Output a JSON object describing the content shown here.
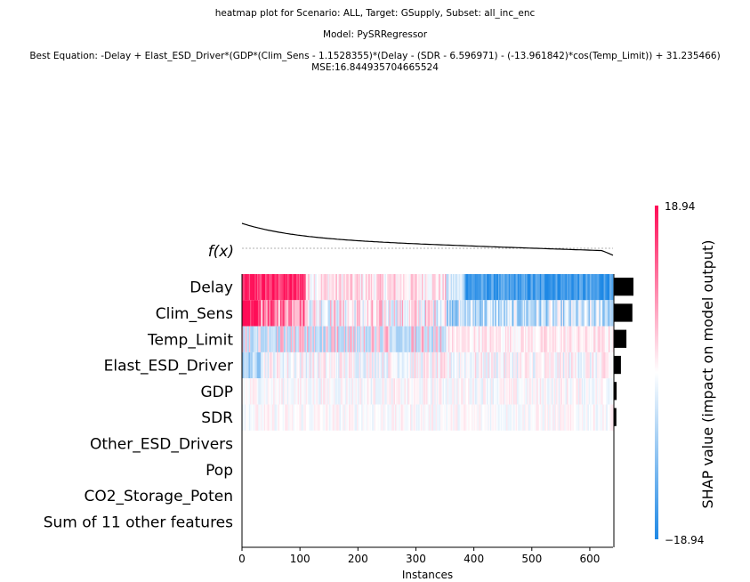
{
  "title": {
    "line1": "heatmap plot for Scenario: ALL, Target: GSupply, Subset: all_inc_enc",
    "line2": "Model: PySRRegressor",
    "line3": "Best Equation: -Delay + Elast_ESD_Driver*(GDP*(Clim_Sens - 1.1528355)*(Delay - (SDR - 6.596971) - (-13.961842)*cos(Temp_Limit)) + 31.235466)",
    "line4": "MSE:16.844935704665524"
  },
  "chart_data": {
    "type": "heatmap",
    "xlabel": "Instances",
    "x_ticks": [
      0,
      100,
      200,
      300,
      400,
      500,
      600
    ],
    "n_instances": 640,
    "fx_label": "f(x)",
    "features": [
      "Delay",
      "Clim_Sens",
      "Temp_Limit",
      "Elast_ESD_Driver",
      "GDP",
      "SDR",
      "Other_ESD_Drivers",
      "Pop",
      "CO2_Storage_Poten",
      "Sum of 11 other features"
    ],
    "mean_abs_importance": [
      5.6,
      5.3,
      3.6,
      2.0,
      0.8,
      0.7,
      0.0,
      0.0,
      0.0,
      0.0
    ],
    "colorbar": {
      "label": "SHAP value (impact on model output)",
      "max_label": "18.94",
      "min_label": "−18.94",
      "vmin": -18.94,
      "vmax": 18.94,
      "color_low": "#1e88e5",
      "color_mid": "#ffffff",
      "color_high": "#ff0d57"
    }
  }
}
